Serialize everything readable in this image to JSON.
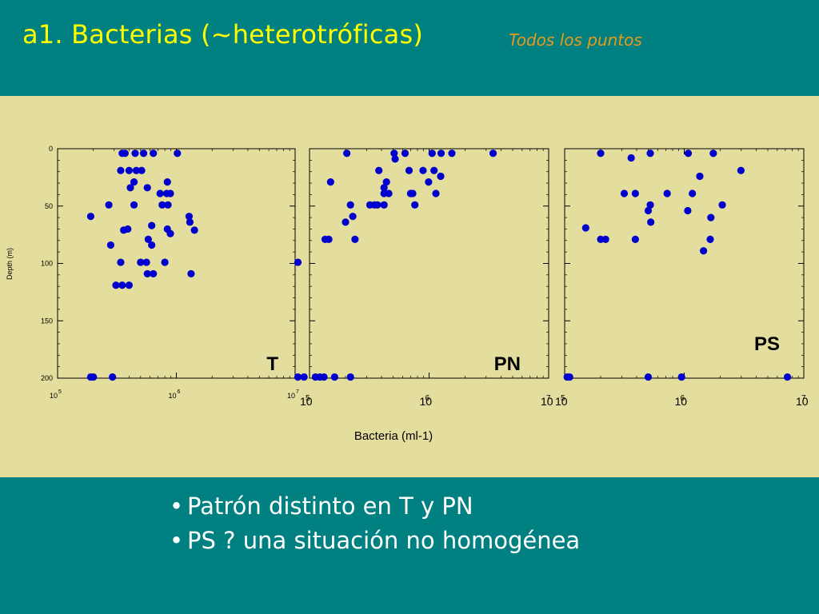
{
  "title": "a1. Bacterias (~heterotróficas)",
  "subtitle": "Todos los puntos",
  "bullets": [
    "Patrón distinto en T y PN",
    "PS ? una situación no homogénea"
  ],
  "colors": {
    "background": "#008080",
    "title": "#ffff00",
    "subtitle": "#e89a1a",
    "chart_panel": "#e3dd9e",
    "points": "#0000cc",
    "bullet_text": "#ffffff"
  },
  "chart_data": [
    {
      "type": "scatter",
      "panel_label": "T",
      "xlabel": "Bacteria (ml-1)",
      "ylabel": "Depth (m)",
      "xscale": "log",
      "xlim": [
        100000,
        10000000
      ],
      "ylim": [
        200,
        0
      ],
      "x_ticks": [
        "10^5",
        "10^6",
        "10^7"
      ],
      "y_ticks": [
        0,
        50,
        100,
        150,
        200
      ],
      "points": [
        [
          350000,
          4
        ],
        [
          370000,
          4
        ],
        [
          450000,
          4
        ],
        [
          530000,
          4
        ],
        [
          640000,
          4
        ],
        [
          1020000,
          4
        ],
        [
          340000,
          19
        ],
        [
          400000,
          19
        ],
        [
          460000,
          19
        ],
        [
          510000,
          19
        ],
        [
          440000,
          29
        ],
        [
          840000,
          29
        ],
        [
          410000,
          34
        ],
        [
          570000,
          34
        ],
        [
          730000,
          39
        ],
        [
          830000,
          39
        ],
        [
          890000,
          39
        ],
        [
          270000,
          49
        ],
        [
          440000,
          49
        ],
        [
          760000,
          49
        ],
        [
          850000,
          49
        ],
        [
          190000,
          59
        ],
        [
          1280000,
          59
        ],
        [
          1300000,
          64
        ],
        [
          620000,
          67
        ],
        [
          360000,
          71
        ],
        [
          390000,
          70
        ],
        [
          840000,
          70
        ],
        [
          1420000,
          71
        ],
        [
          890000,
          74
        ],
        [
          580000,
          79
        ],
        [
          280000,
          84
        ],
        [
          620000,
          84
        ],
        [
          340000,
          99
        ],
        [
          500000,
          99
        ],
        [
          560000,
          99
        ],
        [
          800000,
          99
        ],
        [
          570000,
          109
        ],
        [
          640000,
          109
        ],
        [
          1330000,
          109
        ],
        [
          310000,
          119
        ],
        [
          350000,
          119
        ],
        [
          400000,
          119
        ],
        [
          190000,
          199
        ],
        [
          200000,
          199
        ],
        [
          290000,
          199
        ]
      ]
    },
    {
      "type": "scatter",
      "panel_label": "PN",
      "xscale": "log",
      "xlim": [
        100000,
        10000000
      ],
      "ylim": [
        200,
        0
      ],
      "x_ticks": [
        "10^5",
        "10^6",
        "10^7"
      ],
      "points": [
        [
          205000,
          4
        ],
        [
          510000,
          4
        ],
        [
          630000,
          4
        ],
        [
          1060000,
          4
        ],
        [
          1260000,
          4
        ],
        [
          1550000,
          4
        ],
        [
          3430000,
          4
        ],
        [
          520000,
          9
        ],
        [
          380000,
          19
        ],
        [
          680000,
          19
        ],
        [
          890000,
          19
        ],
        [
          1100000,
          19
        ],
        [
          1250000,
          24
        ],
        [
          150000,
          29
        ],
        [
          440000,
          29
        ],
        [
          990000,
          29
        ],
        [
          420000,
          34
        ],
        [
          420000,
          39
        ],
        [
          460000,
          39
        ],
        [
          700000,
          39
        ],
        [
          730000,
          39
        ],
        [
          1140000,
          39
        ],
        [
          220000,
          49
        ],
        [
          320000,
          49
        ],
        [
          350000,
          49
        ],
        [
          370000,
          49
        ],
        [
          420000,
          49
        ],
        [
          760000,
          49
        ],
        [
          230000,
          59
        ],
        [
          200000,
          64
        ],
        [
          135000,
          79
        ],
        [
          145000,
          79
        ],
        [
          240000,
          79
        ],
        [
          80000,
          99
        ],
        [
          80000,
          199
        ],
        [
          90000,
          199
        ],
        [
          112000,
          199
        ],
        [
          122000,
          199
        ],
        [
          132000,
          199
        ],
        [
          162000,
          199
        ],
        [
          220000,
          199
        ]
      ]
    },
    {
      "type": "scatter",
      "panel_label": "PS",
      "xscale": "log",
      "xlim": [
        100000,
        10000000
      ],
      "ylim": [
        200,
        0
      ],
      "x_ticks": [
        "10^5",
        "10^6",
        "10^7"
      ],
      "points": [
        [
          200000,
          4
        ],
        [
          520000,
          4
        ],
        [
          1080000,
          4
        ],
        [
          1750000,
          4
        ],
        [
          360000,
          8
        ],
        [
          2980000,
          19
        ],
        [
          1350000,
          24
        ],
        [
          315000,
          39
        ],
        [
          390000,
          39
        ],
        [
          720000,
          39
        ],
        [
          1170000,
          39
        ],
        [
          520000,
          49
        ],
        [
          2080000,
          49
        ],
        [
          500000,
          54
        ],
        [
          1070000,
          54
        ],
        [
          1670000,
          60
        ],
        [
          525000,
          64
        ],
        [
          150000,
          69
        ],
        [
          200000,
          79
        ],
        [
          220000,
          79
        ],
        [
          390000,
          79
        ],
        [
          1650000,
          79
        ],
        [
          1450000,
          89
        ],
        [
          105000,
          199
        ],
        [
          110000,
          199
        ],
        [
          500000,
          199
        ],
        [
          950000,
          199
        ],
        [
          7300000,
          199
        ]
      ]
    }
  ]
}
